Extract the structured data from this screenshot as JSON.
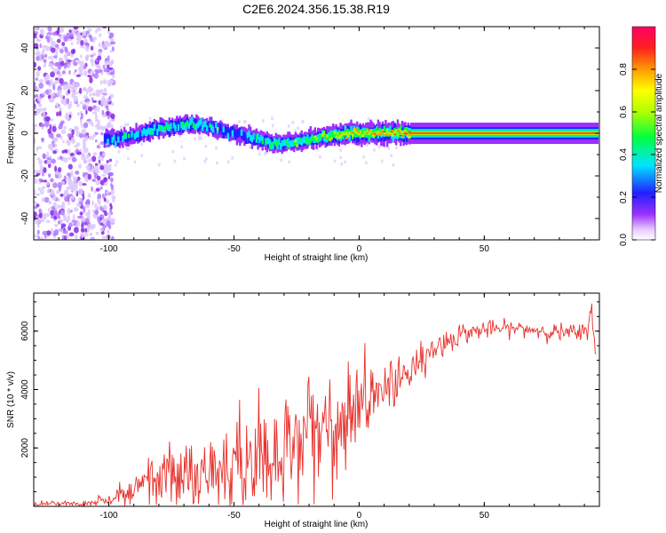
{
  "title": "C2E6.2024.356.15.38.R19",
  "colors": {
    "snr_line": "#e8302a",
    "noise_dots": "#8a2be2",
    "axis": "#000000"
  },
  "chart_data": [
    {
      "type": "heatmap",
      "xlabel": "Height of straight line (km)",
      "ylabel": "Frequency (Hz)",
      "xlim": [
        -130,
        96
      ],
      "ylim": [
        -50,
        50
      ],
      "x_ticks": [
        -100,
        -50,
        0,
        50
      ],
      "y_ticks": [
        -40,
        -20,
        0,
        20,
        40
      ],
      "colorbar": {
        "label": "Normalized spectral amplitude",
        "range": [
          0.0,
          1.0
        ],
        "ticks": [
          "0.0",
          "0.2",
          "0.4",
          "0.6",
          "0.8"
        ],
        "colormap": "rainbow (white-violet-blue-cyan-green-yellow-orange-red-magenta)"
      },
      "signal_ridge": {
        "x": [
          -102,
          -95,
          -90,
          -85,
          -80,
          -75,
          -70,
          -65,
          -60,
          -55,
          -50,
          -45,
          -40,
          -35,
          -30,
          -25,
          -20,
          -15,
          -10,
          -5,
          0,
          5,
          10,
          15,
          20,
          30,
          40,
          50,
          60,
          70,
          80,
          90,
          95
        ],
        "y": [
          -3,
          -2,
          -1,
          1,
          2,
          3,
          4,
          4,
          3,
          1,
          0,
          -1,
          -3,
          -5,
          -5,
          -4,
          -3,
          -2,
          -1,
          0,
          0,
          0,
          0,
          0,
          0,
          0,
          0,
          0,
          0,
          0,
          0,
          0,
          0
        ],
        "amplitude": [
          0.35,
          0.4,
          0.4,
          0.45,
          0.45,
          0.45,
          0.5,
          0.45,
          0.4,
          0.35,
          0.35,
          0.4,
          0.45,
          0.5,
          0.5,
          0.5,
          0.55,
          0.65,
          0.75,
          0.8,
          0.85,
          0.85,
          0.85,
          0.9,
          0.95,
          0.95,
          0.95,
          0.95,
          0.95,
          0.95,
          0.95,
          0.95,
          0.95
        ]
      },
      "noise_region_x": [
        -130,
        -98
      ]
    },
    {
      "type": "line",
      "xlabel": "Height of straight line (km)",
      "ylabel": "SNR (10 * v/v)",
      "xlim": [
        -130,
        96
      ],
      "ylim": [
        0,
        7300
      ],
      "x_ticks": [
        -100,
        -50,
        0,
        50
      ],
      "y_ticks": [
        2000,
        4000,
        6000
      ],
      "trend": {
        "x": [
          -130,
          -110,
          -100,
          -90,
          -80,
          -70,
          -60,
          -50,
          -40,
          -30,
          -20,
          -10,
          0,
          10,
          20,
          30,
          40,
          50,
          60,
          70,
          80,
          90,
          93,
          95
        ],
        "y": [
          80,
          100,
          200,
          600,
          900,
          1100,
          1300,
          1500,
          1800,
          2200,
          2600,
          2900,
          3500,
          4100,
          4700,
          5400,
          5900,
          6050,
          6100,
          6050,
          5950,
          5900,
          6700,
          5000
        ],
        "spread": [
          60,
          80,
          150,
          400,
          600,
          800,
          1000,
          1100,
          1200,
          1300,
          1300,
          1200,
          900,
          700,
          500,
          350,
          250,
          200,
          180,
          180,
          200,
          250,
          300,
          300
        ]
      }
    }
  ]
}
